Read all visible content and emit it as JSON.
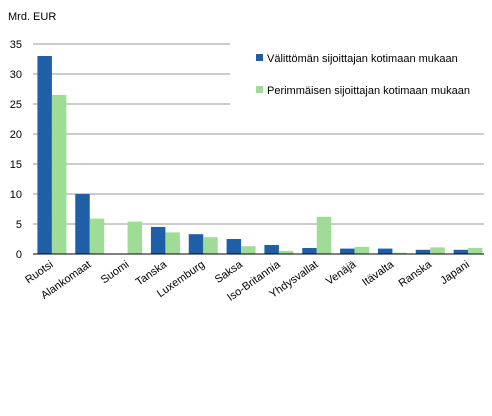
{
  "chart_data": {
    "type": "bar",
    "ylabel": "Mrd. EUR",
    "ylim": [
      0,
      35
    ],
    "yticks": [
      0,
      5,
      10,
      15,
      20,
      25,
      30,
      35
    ],
    "grid": true,
    "legend_position": "top-right",
    "categories": [
      "Ruotsi",
      "Alankomaat",
      "Suomi",
      "Tanska",
      "Luxemburg",
      "Saksa",
      "Iso-Britannia",
      "Yhdysvallat",
      "Venäjä",
      "Itävalta",
      "Ranska",
      "Japani"
    ],
    "series": [
      {
        "name": "Välittömän sijoittajan kotimaan mukaan",
        "color": "#1f5fa8",
        "values": [
          33.0,
          10.0,
          0.0,
          4.5,
          3.3,
          2.5,
          1.5,
          1.0,
          0.9,
          0.9,
          0.7,
          0.7
        ]
      },
      {
        "name": "Perimmäisen sijoittajan kotimaan mukaan",
        "color": "#9fdc95",
        "values": [
          26.5,
          5.9,
          5.4,
          3.6,
          2.8,
          1.3,
          0.5,
          6.2,
          1.2,
          0.2,
          1.1,
          1.0
        ]
      }
    ]
  }
}
